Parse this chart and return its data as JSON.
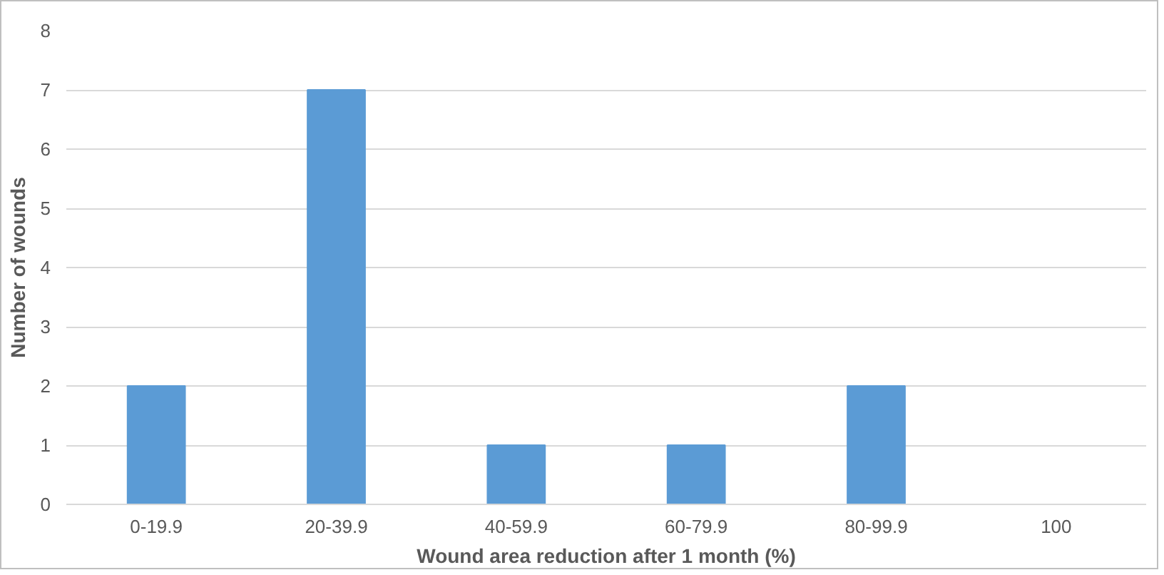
{
  "chart_data": {
    "type": "bar",
    "xlabel": "Wound area reduction after 1 month (%)",
    "ylabel": "Number of wounds",
    "categories": [
      "0-19.9",
      "20-39.9",
      "40-59.9",
      "60-79.9",
      "80-99.9",
      "100"
    ],
    "values": [
      2,
      7,
      1,
      1,
      2,
      0
    ],
    "color": "#5b9bd5",
    "ylim": [
      0,
      8
    ],
    "yticks": [
      0,
      1,
      2,
      3,
      4,
      5,
      6,
      7,
      8
    ],
    "grid": "y"
  }
}
